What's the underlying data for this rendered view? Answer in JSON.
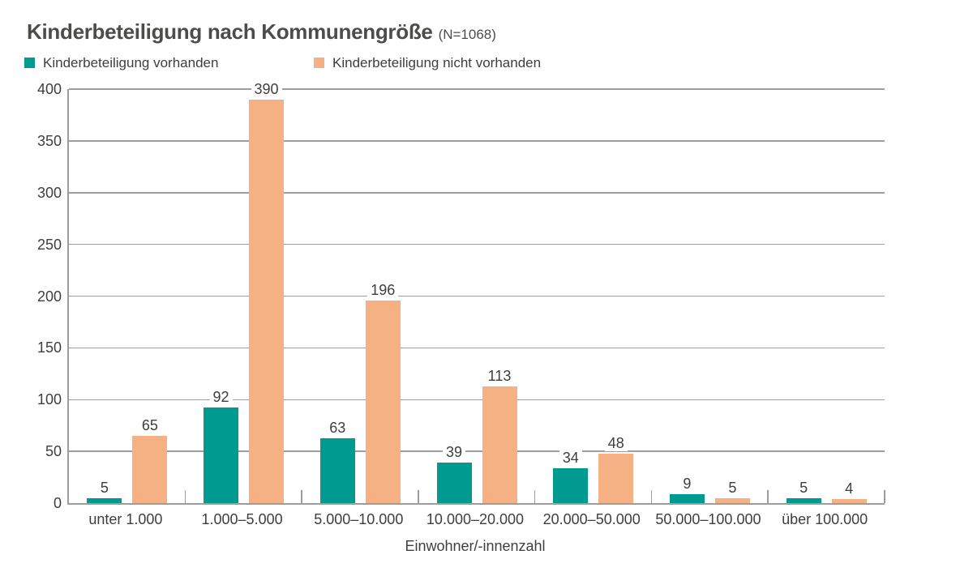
{
  "header": {
    "title": "Kinderbeteiligung nach Kommunengröße",
    "note": "(N=1068)"
  },
  "chart_data": {
    "type": "bar",
    "title": "Kinderbeteiligung nach Kommunengröße (N=1068)",
    "categories": [
      "unter 1.000",
      "1.000–5.000",
      "5.000–10.000",
      "10.000–20.000",
      "20.000–50.000",
      "50.000–100.000",
      "über 100.000"
    ],
    "series": [
      {
        "name": "Kinderbeteiligung vorhanden",
        "color": "#009a90",
        "values": [
          5,
          92,
          63,
          39,
          34,
          9,
          5
        ]
      },
      {
        "name": "Kinderbeteiligung nicht vorhanden",
        "color": "#f5b184",
        "values": [
          65,
          390,
          196,
          113,
          48,
          5,
          4
        ]
      }
    ],
    "xlabel": "Einwohner/-innenzahl",
    "ylabel": "",
    "ylim": [
      0,
      400
    ],
    "ytick_step": 50,
    "grid": true,
    "legend_position": "top"
  },
  "colors": {
    "series_1": "#009a90",
    "series_2": "#f5b184",
    "gridline": "#9d9d9c",
    "text": "#3e3e3d",
    "title_text": "#4c4c4b"
  }
}
